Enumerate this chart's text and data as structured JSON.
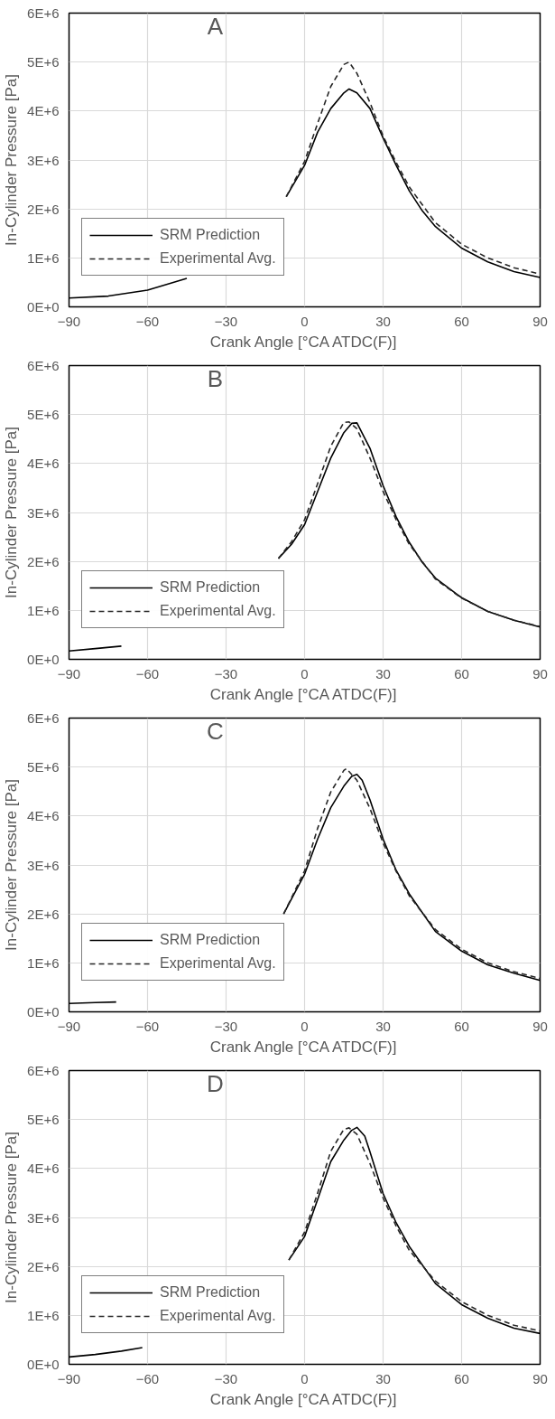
{
  "chart_data": [
    {
      "type": "line",
      "title": "A",
      "xlabel": "Crank Angle [°CA ATDC(F)]",
      "ylabel": "In-Cylinder Pressure [Pa]",
      "xlim": [
        -90,
        90
      ],
      "xticks": [
        -90,
        -60,
        -30,
        0,
        30,
        60,
        90
      ],
      "ylim": [
        0,
        6000000
      ],
      "yticks": [
        {
          "value": 0,
          "label": "0E+0"
        },
        {
          "value": 1000000,
          "label": "1E+6"
        },
        {
          "value": 2000000,
          "label": "2E+6"
        },
        {
          "value": 3000000,
          "label": "3E+6"
        },
        {
          "value": 4000000,
          "label": "4E+6"
        },
        {
          "value": 5000000,
          "label": "5E+6"
        },
        {
          "value": 6000000,
          "label": "6E+6"
        }
      ],
      "grid": true,
      "legend": "bottom left",
      "series": [
        {
          "name": "SRM Prediction",
          "color": "#000000",
          "line_style": "solid",
          "x": [
            -90,
            -75,
            -60,
            -45,
            -40,
            -7,
            0,
            5,
            10,
            15,
            17,
            20,
            25,
            30,
            35,
            40,
            45,
            50,
            60,
            70,
            80,
            90
          ],
          "values": [
            180000,
            220000,
            340000,
            580000,
            null,
            2250000,
            2890000,
            3570000,
            4050000,
            4370000,
            4450000,
            4370000,
            4050000,
            3450000,
            2890000,
            2370000,
            1960000,
            1640000,
            1200000,
            920000,
            720000,
            600000
          ]
        },
        {
          "name": "Experimental Avg.",
          "color": "#262626",
          "line_style": "dashed",
          "x": [
            -7,
            0,
            5,
            10,
            15,
            17,
            20,
            25,
            30,
            35,
            40,
            50,
            60,
            70,
            80,
            90
          ],
          "values": [
            2250000,
            2970000,
            3750000,
            4500000,
            4950000,
            5000000,
            4770000,
            4170000,
            3490000,
            2950000,
            2450000,
            1720000,
            1280000,
            1000000,
            800000,
            670000
          ]
        }
      ]
    },
    {
      "type": "line",
      "title": "B",
      "xlabel": "Crank Angle [°CA ATDC(F)]",
      "ylabel": "In-Cylinder Pressure [Pa]",
      "xlim": [
        -90,
        90
      ],
      "xticks": [
        -90,
        -60,
        -30,
        0,
        30,
        60,
        90
      ],
      "ylim": [
        0,
        6000000
      ],
      "yticks": [
        {
          "value": 0,
          "label": "0E+0"
        },
        {
          "value": 1000000,
          "label": "1E+6"
        },
        {
          "value": 2000000,
          "label": "2E+6"
        },
        {
          "value": 3000000,
          "label": "3E+6"
        },
        {
          "value": 4000000,
          "label": "4E+6"
        },
        {
          "value": 5000000,
          "label": "5E+6"
        },
        {
          "value": 6000000,
          "label": "6E+6"
        }
      ],
      "grid": true,
      "legend": "bottom left",
      "series": [
        {
          "name": "SRM Prediction",
          "color": "#000000",
          "line_style": "solid",
          "x": [
            -90,
            -80,
            -70,
            -65,
            -10,
            -5,
            0,
            5,
            10,
            15,
            18,
            20,
            25,
            30,
            35,
            40,
            45,
            50,
            60,
            70,
            80,
            90
          ],
          "values": [
            170000,
            220000,
            270000,
            null,
            2060000,
            2350000,
            2750000,
            3430000,
            4110000,
            4630000,
            4820000,
            4830000,
            4310000,
            3550000,
            2910000,
            2390000,
            1980000,
            1660000,
            1260000,
            980000,
            800000,
            660000
          ]
        },
        {
          "name": "Experimental Avg.",
          "color": "#262626",
          "line_style": "dashed",
          "x": [
            -10,
            -5,
            0,
            5,
            10,
            15,
            17,
            20,
            25,
            30,
            35,
            40,
            50,
            60,
            70,
            80,
            90
          ],
          "values": [
            2060000,
            2400000,
            2850000,
            3590000,
            4350000,
            4840000,
            4850000,
            4710000,
            4110000,
            3430000,
            2850000,
            2350000,
            1640000,
            1250000,
            980000,
            800000,
            670000
          ]
        }
      ]
    },
    {
      "type": "line",
      "title": "C",
      "xlabel": "Crank Angle [°CA ATDC(F)]",
      "ylabel": "In-Cylinder Pressure [Pa]",
      "xlim": [
        -90,
        90
      ],
      "xticks": [
        -90,
        -60,
        -30,
        0,
        30,
        60,
        90
      ],
      "ylim": [
        0,
        6000000
      ],
      "yticks": [
        {
          "value": 0,
          "label": "0E+0"
        },
        {
          "value": 1000000,
          "label": "1E+6"
        },
        {
          "value": 2000000,
          "label": "2E+6"
        },
        {
          "value": 3000000,
          "label": "3E+6"
        },
        {
          "value": 4000000,
          "label": "4E+6"
        },
        {
          "value": 5000000,
          "label": "5E+6"
        },
        {
          "value": 6000000,
          "label": "6E+6"
        }
      ],
      "grid": true,
      "legend": "bottom left",
      "series": [
        {
          "name": "SRM Prediction",
          "color": "#000000",
          "line_style": "solid",
          "x": [
            -90,
            -80,
            -72,
            -60,
            -8,
            -2,
            0,
            5,
            10,
            15,
            18,
            20,
            22,
            25,
            30,
            35,
            40,
            50,
            60,
            70,
            80,
            90
          ],
          "values": [
            170000,
            190000,
            200000,
            null,
            2000000,
            2610000,
            2810000,
            3530000,
            4170000,
            4610000,
            4810000,
            4850000,
            4730000,
            4330000,
            3530000,
            2890000,
            2410000,
            1640000,
            1240000,
            960000,
            790000,
            640000
          ]
        },
        {
          "name": "Experimental Avg.",
          "color": "#262626",
          "line_style": "dashed",
          "x": [
            -8,
            0,
            5,
            10,
            15,
            16,
            20,
            25,
            30,
            35,
            40,
            50,
            60,
            70,
            80,
            90
          ],
          "values": [
            2000000,
            2880000,
            3750000,
            4490000,
            4930000,
            4970000,
            4730000,
            4150000,
            3450000,
            2870000,
            2370000,
            1680000,
            1280000,
            1000000,
            820000,
            680000
          ]
        }
      ]
    },
    {
      "type": "line",
      "title": "D",
      "xlabel": "Crank Angle [°CA ATDC(F)]",
      "ylabel": "In-Cylinder Pressure [Pa]",
      "xlim": [
        -90,
        90
      ],
      "xticks": [
        -90,
        -60,
        -30,
        0,
        30,
        60,
        90
      ],
      "ylim": [
        0,
        6000000
      ],
      "yticks": [
        {
          "value": 0,
          "label": "0E+0"
        },
        {
          "value": 1000000,
          "label": "1E+6"
        },
        {
          "value": 2000000,
          "label": "2E+6"
        },
        {
          "value": 3000000,
          "label": "3E+6"
        },
        {
          "value": 4000000,
          "label": "4E+6"
        },
        {
          "value": 5000000,
          "label": "5E+6"
        },
        {
          "value": 6000000,
          "label": "6E+6"
        }
      ],
      "grid": true,
      "legend": "bottom left",
      "series": [
        {
          "name": "SRM Prediction",
          "color": "#000000",
          "line_style": "solid",
          "x": [
            -90,
            -80,
            -70,
            -62,
            -50,
            -6,
            0,
            5,
            10,
            15,
            18,
            20,
            23,
            25,
            30,
            35,
            40,
            50,
            60,
            70,
            80,
            90
          ],
          "values": [
            150000,
            200000,
            270000,
            340000,
            null,
            2130000,
            2610000,
            3370000,
            4140000,
            4580000,
            4780000,
            4840000,
            4660000,
            4340000,
            3490000,
            2890000,
            2410000,
            1650000,
            1220000,
            940000,
            740000,
            630000
          ]
        },
        {
          "name": "Experimental Avg.",
          "color": "#262626",
          "line_style": "dashed",
          "x": [
            -6,
            0,
            5,
            10,
            15,
            17,
            20,
            25,
            30,
            35,
            40,
            50,
            60,
            70,
            80,
            90
          ],
          "values": [
            2130000,
            2700000,
            3500000,
            4350000,
            4800000,
            4830000,
            4700000,
            4100000,
            3400000,
            2820000,
            2330000,
            1700000,
            1280000,
            1000000,
            800000,
            680000
          ]
        }
      ]
    }
  ]
}
